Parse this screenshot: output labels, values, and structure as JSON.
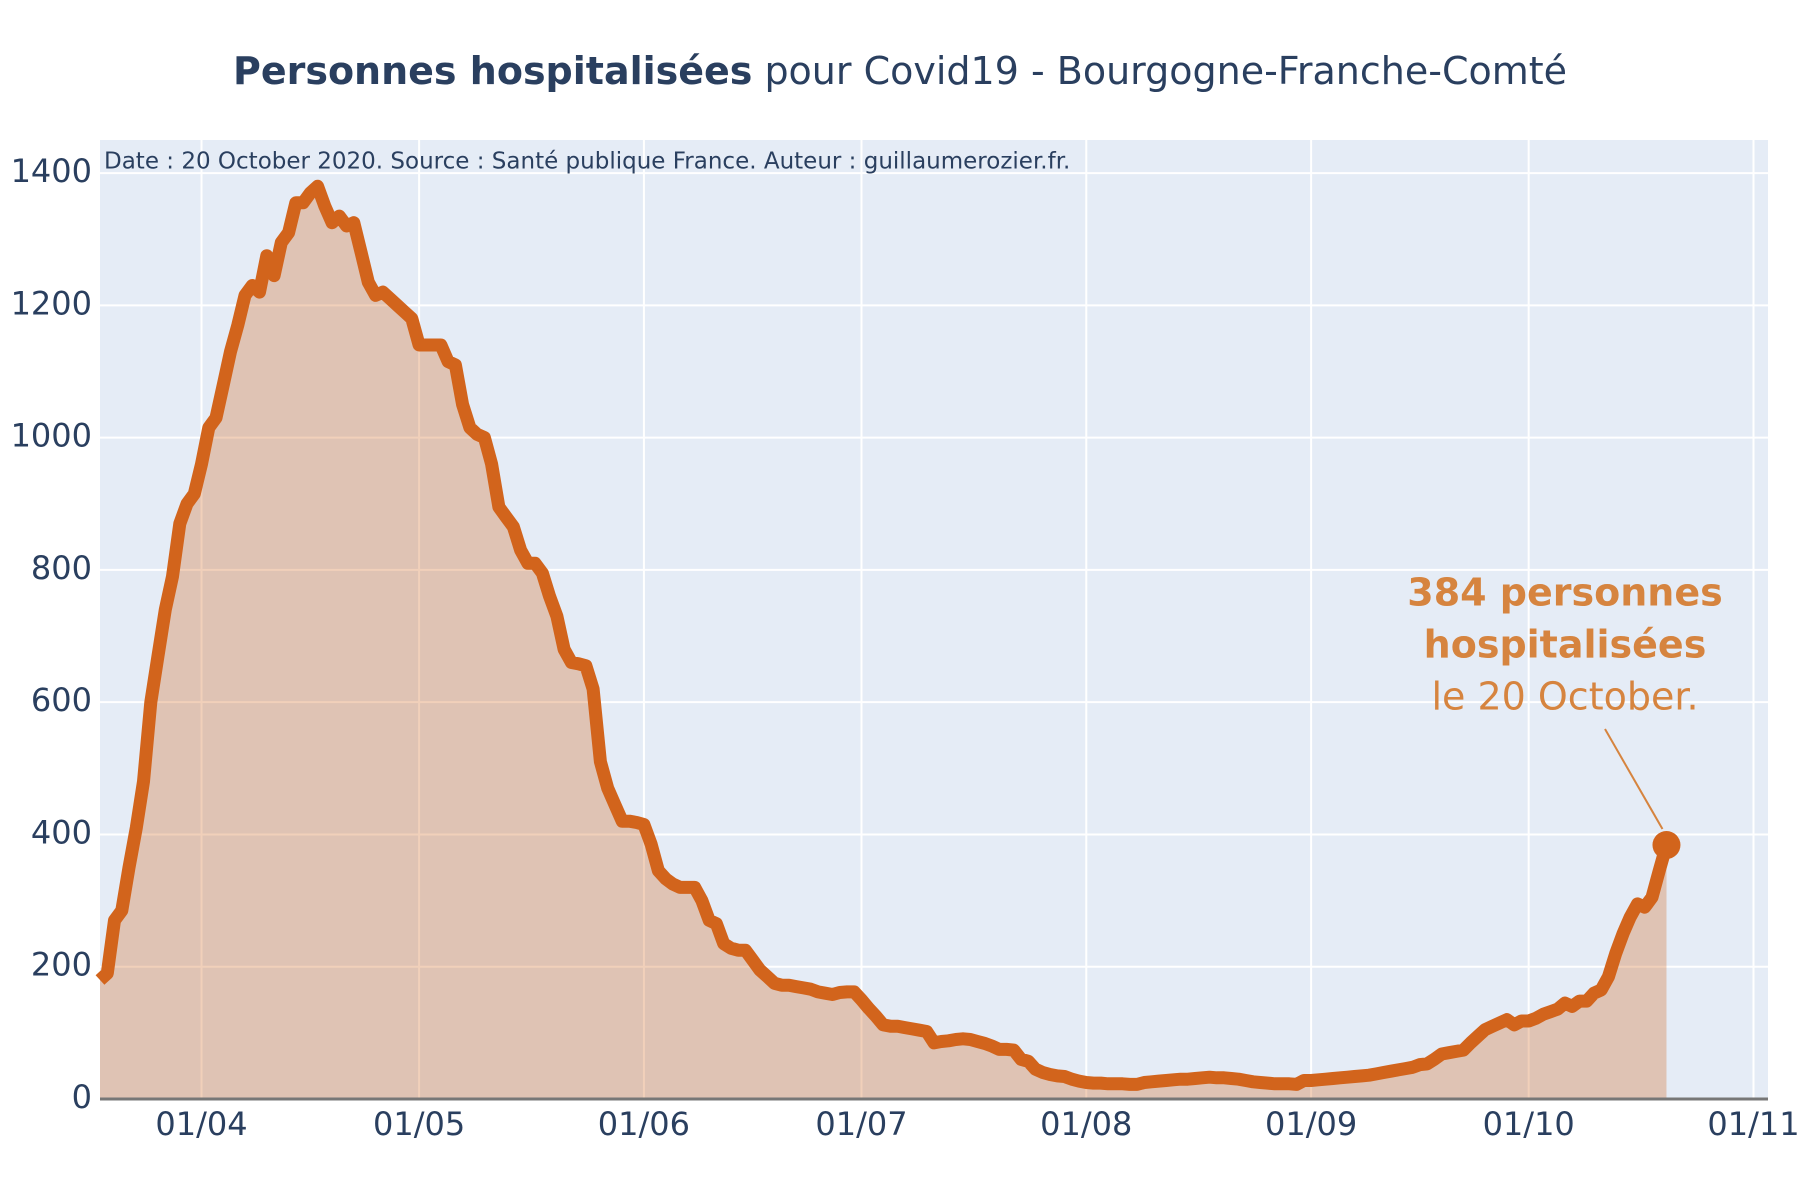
{
  "chart_data": {
    "type": "line",
    "title": {
      "bold": "Personnes hospitalisées",
      "rest": "pour Covid19 - Bourgogne-Franche-Comté"
    },
    "note": "Date : 20 October 2020. Source : Santé publique France. Auteur : guillaumerozier.fr.",
    "annotation": [
      "384 personnes",
      "hospitalisées",
      "le 20 October."
    ],
    "color": "#d2641c",
    "x": [
      "18/03",
      "19/03",
      "20/03",
      "21/03",
      "22/03",
      "23/03",
      "24/03",
      "25/03",
      "26/03",
      "27/03",
      "28/03",
      "29/03",
      "30/03",
      "31/03",
      "01/04",
      "02/04",
      "03/04",
      "04/04",
      "05/04",
      "06/04",
      "07/04",
      "08/04",
      "09/04",
      "10/04",
      "11/04",
      "12/04",
      "13/04",
      "14/04",
      "15/04",
      "16/04",
      "17/04",
      "18/04",
      "19/04",
      "20/04",
      "21/04",
      "22/04",
      "23/04",
      "24/04",
      "25/04",
      "26/04",
      "27/04",
      "28/04",
      "29/04",
      "30/04",
      "01/05",
      "02/05",
      "03/05",
      "04/05",
      "05/05",
      "06/05",
      "07/05",
      "08/05",
      "09/05",
      "10/05",
      "11/05",
      "12/05",
      "13/05",
      "14/05",
      "15/05",
      "16/05",
      "17/05",
      "18/05",
      "19/05",
      "20/05",
      "21/05",
      "22/05",
      "23/05",
      "24/05",
      "25/05",
      "26/05",
      "27/05",
      "28/05",
      "29/05",
      "30/05",
      "31/05",
      "01/06",
      "02/06",
      "03/06",
      "04/06",
      "05/06",
      "06/06",
      "07/06",
      "08/06",
      "09/06",
      "10/06",
      "11/06",
      "12/06",
      "13/06",
      "14/06",
      "15/06",
      "16/06",
      "17/06",
      "18/06",
      "19/06",
      "20/06",
      "21/06",
      "22/06",
      "23/06",
      "24/06",
      "25/06",
      "26/06",
      "27/06",
      "28/06",
      "29/06",
      "30/06",
      "01/07",
      "02/07",
      "03/07",
      "04/07",
      "05/07",
      "06/07",
      "07/07",
      "08/07",
      "09/07",
      "10/07",
      "11/07",
      "12/07",
      "13/07",
      "14/07",
      "15/07",
      "16/07",
      "17/07",
      "18/07",
      "19/07",
      "20/07",
      "21/07",
      "22/07",
      "23/07",
      "24/07",
      "25/07",
      "26/07",
      "27/07",
      "28/07",
      "29/07",
      "30/07",
      "31/07",
      "01/08",
      "02/08",
      "03/08",
      "04/08",
      "05/08",
      "06/08",
      "07/08",
      "08/08",
      "09/08",
      "10/08",
      "11/08",
      "12/08",
      "13/08",
      "14/08",
      "15/08",
      "16/08",
      "17/08",
      "18/08",
      "19/08",
      "20/08",
      "21/08",
      "22/08",
      "23/08",
      "24/08",
      "25/08",
      "26/08",
      "27/08",
      "28/08",
      "29/08",
      "30/08",
      "31/08",
      "01/09",
      "02/09",
      "03/09",
      "04/09",
      "05/09",
      "06/09",
      "07/09",
      "08/09",
      "09/09",
      "10/09",
      "11/09",
      "12/09",
      "13/09",
      "14/09",
      "15/09",
      "16/09",
      "17/09",
      "18/09",
      "19/09",
      "20/09",
      "21/09",
      "22/09",
      "23/09",
      "24/09",
      "25/09",
      "26/09",
      "27/09",
      "28/09",
      "29/09",
      "30/09",
      "01/10",
      "02/10",
      "03/10",
      "04/10",
      "05/10",
      "06/10",
      "07/10",
      "08/10",
      "09/10",
      "10/10",
      "11/10",
      "12/10",
      "13/10",
      "14/10",
      "15/10",
      "16/10",
      "17/10",
      "18/10",
      "19/10",
      "20/10"
    ],
    "values": [
      180,
      190,
      270,
      285,
      350,
      410,
      480,
      600,
      670,
      740,
      790,
      870,
      900,
      915,
      960,
      1015,
      1030,
      1080,
      1130,
      1170,
      1215,
      1230,
      1220,
      1275,
      1245,
      1295,
      1310,
      1355,
      1355,
      1370,
      1380,
      1350,
      1325,
      1335,
      1320,
      1325,
      1280,
      1235,
      1215,
      1220,
      1210,
      1200,
      1190,
      1180,
      1140,
      1140,
      1140,
      1140,
      1115,
      1110,
      1050,
      1015,
      1005,
      1000,
      960,
      895,
      880,
      865,
      830,
      810,
      810,
      795,
      760,
      730,
      680,
      660,
      658,
      655,
      620,
      510,
      470,
      445,
      420,
      420,
      418,
      415,
      385,
      345,
      333,
      325,
      320,
      320,
      320,
      300,
      270,
      265,
      235,
      228,
      225,
      225,
      210,
      195,
      185,
      175,
      172,
      172,
      170,
      168,
      166,
      162,
      160,
      158,
      161,
      162,
      162,
      150,
      137,
      125,
      112,
      110,
      110,
      108,
      106,
      104,
      102,
      85,
      87,
      88,
      90,
      91,
      90,
      87,
      84,
      80,
      75,
      75,
      74,
      60,
      57,
      45,
      40,
      37,
      35,
      34,
      30,
      27,
      25,
      24,
      24,
      23,
      23,
      23,
      22,
      22,
      25,
      26,
      27,
      28,
      29,
      30,
      30,
      31,
      32,
      33,
      32,
      32,
      31,
      30,
      28,
      26,
      25,
      24,
      23,
      23,
      23,
      22,
      28,
      28,
      29,
      30,
      31,
      32,
      33,
      34,
      35,
      36,
      38,
      40,
      42,
      44,
      46,
      48,
      52,
      53,
      60,
      68,
      70,
      72,
      74,
      85,
      95,
      105,
      110,
      115,
      120,
      112,
      118,
      118,
      122,
      128,
      132,
      136,
      145,
      140,
      148,
      148,
      160,
      165,
      185,
      220,
      250,
      275,
      295,
      290,
      305,
      345,
      384
    ],
    "xlim": [
      "18/03",
      "03/11"
    ],
    "xticks": [
      "01/04",
      "01/05",
      "01/06",
      "01/07",
      "01/08",
      "01/09",
      "01/10",
      "01/11"
    ],
    "ylim": [
      0,
      1450
    ],
    "yticks": [
      0,
      200,
      400,
      600,
      800,
      1000,
      1200,
      1400
    ],
    "grid": true
  }
}
